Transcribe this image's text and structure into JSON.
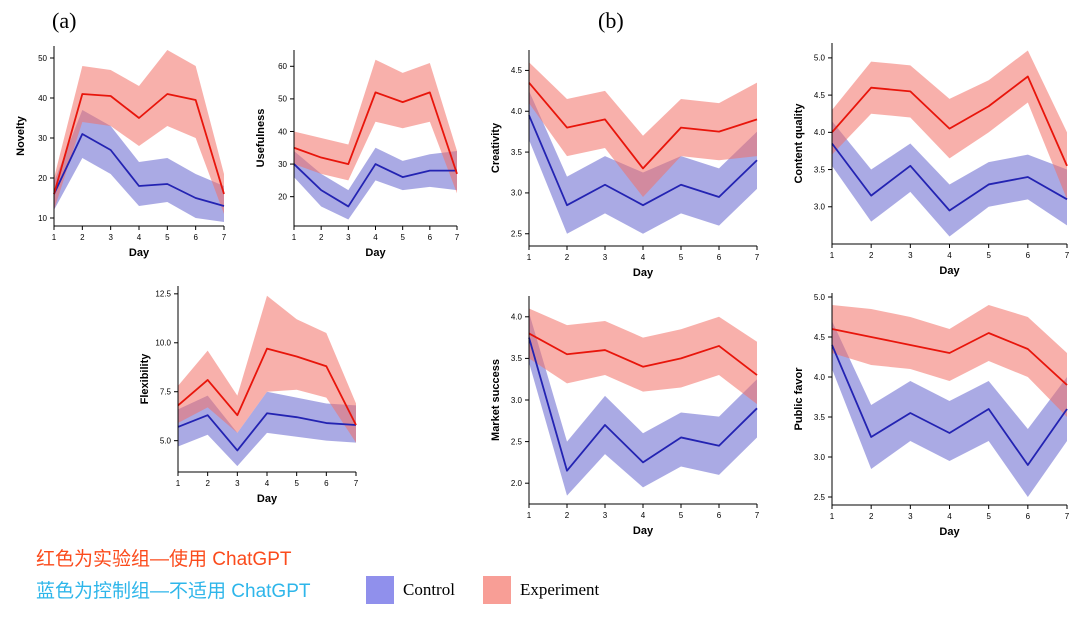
{
  "panel_a_label": "(a)",
  "panel_b_label": "(b)",
  "caption": {
    "line1": "红色为实验组—使用 ChatGPT",
    "line2": "蓝色为控制组—不适用 ChatGPT"
  },
  "legend": {
    "control_label": "Control",
    "experiment_label": "Experiment"
  },
  "colors": {
    "experiment_line": "#E8150B",
    "experiment_band": "#F26F66",
    "control_line": "#2323B2",
    "control_band": "#6464CE",
    "control_swatch": "#9090EC",
    "experiment_swatch": "#F89E96",
    "caption_red": "#FB4B1C",
    "caption_blue": "#2EB6EA"
  },
  "chart_data": [
    {
      "id": "novelty",
      "panel": "a",
      "type": "line",
      "xlabel": "Day",
      "ylabel": "Novelty",
      "x": [
        1,
        2,
        3,
        4,
        5,
        6,
        7
      ],
      "ylim": [
        8,
        53
      ],
      "yticks": [
        10,
        20,
        30,
        40,
        50
      ],
      "ytick_labels": [
        "10",
        "20",
        "30",
        "40",
        "50"
      ],
      "series": [
        {
          "key": "control",
          "name": "Control",
          "values": [
            16,
            31,
            27,
            18,
            18.5,
            15,
            13
          ],
          "lower": [
            12,
            25,
            21,
            13,
            14,
            10,
            9
          ],
          "upper": [
            19,
            37,
            33,
            24,
            25,
            21,
            18
          ]
        },
        {
          "key": "experiment",
          "name": "Experiment",
          "values": [
            16,
            41,
            40.5,
            35,
            41,
            39.5,
            16
          ],
          "lower": [
            12,
            34,
            33,
            28,
            33,
            30,
            11
          ],
          "upper": [
            20,
            48,
            47,
            43,
            52,
            48,
            21
          ]
        }
      ]
    },
    {
      "id": "usefulness",
      "panel": "a",
      "type": "line",
      "xlabel": "Day",
      "ylabel": "Usefulness",
      "x": [
        1,
        2,
        3,
        4,
        5,
        6,
        7
      ],
      "ylim": [
        11,
        65
      ],
      "yticks": [
        20,
        30,
        40,
        50,
        60
      ],
      "ytick_labels": [
        "20",
        "30",
        "40",
        "50",
        "60"
      ],
      "series": [
        {
          "key": "control",
          "name": "Control",
          "values": [
            30,
            22,
            17,
            30,
            26,
            28,
            28
          ],
          "lower": [
            26,
            17,
            13,
            25,
            22,
            23,
            22
          ],
          "upper": [
            34,
            27,
            22,
            35,
            31,
            33,
            34
          ]
        },
        {
          "key": "experiment",
          "name": "Experiment",
          "values": [
            35,
            32,
            30,
            52,
            49,
            52,
            27
          ],
          "lower": [
            30,
            27,
            25,
            43,
            41,
            43,
            21
          ],
          "upper": [
            40,
            38,
            36,
            62,
            58,
            61,
            34
          ]
        }
      ]
    },
    {
      "id": "flexibility",
      "panel": "a",
      "type": "line",
      "xlabel": "Day",
      "ylabel": "Flexibility",
      "x": [
        1,
        2,
        3,
        4,
        5,
        6,
        7
      ],
      "ylim": [
        3.4,
        12.9
      ],
      "yticks": [
        5.0,
        7.5,
        10.0,
        12.5
      ],
      "ytick_labels": [
        "5.0",
        "7.5",
        "10.0",
        "12.5"
      ],
      "series": [
        {
          "key": "control",
          "name": "Control",
          "values": [
            5.7,
            6.3,
            4.5,
            6.4,
            6.2,
            5.9,
            5.8
          ],
          "lower": [
            4.7,
            5.3,
            3.7,
            5.4,
            5.2,
            5.0,
            4.9
          ],
          "upper": [
            6.6,
            7.3,
            5.4,
            7.5,
            7.2,
            6.9,
            6.8
          ]
        },
        {
          "key": "experiment",
          "name": "Experiment",
          "values": [
            6.8,
            8.1,
            6.3,
            9.7,
            9.3,
            8.8,
            5.8
          ],
          "lower": [
            5.9,
            6.7,
            5.4,
            7.5,
            7.6,
            7.2,
            4.9
          ],
          "upper": [
            7.8,
            9.6,
            7.3,
            12.4,
            11.2,
            10.5,
            6.9
          ]
        }
      ]
    },
    {
      "id": "creativity",
      "panel": "b",
      "type": "line",
      "xlabel": "Day",
      "ylabel": "Creativity",
      "x": [
        1,
        2,
        3,
        4,
        5,
        6,
        7
      ],
      "ylim": [
        2.35,
        4.75
      ],
      "yticks": [
        2.5,
        3.0,
        3.5,
        4.0,
        4.5
      ],
      "ytick_labels": [
        "2.5",
        "3.0",
        "3.5",
        "4.0",
        "4.5"
      ],
      "series": [
        {
          "key": "control",
          "name": "Control",
          "values": [
            3.95,
            2.85,
            3.1,
            2.85,
            3.1,
            2.95,
            3.4
          ],
          "lower": [
            3.65,
            2.5,
            2.75,
            2.5,
            2.75,
            2.6,
            3.05
          ],
          "upper": [
            4.25,
            3.2,
            3.45,
            3.25,
            3.45,
            3.3,
            3.75
          ]
        },
        {
          "key": "experiment",
          "name": "Experiment",
          "values": [
            4.35,
            3.8,
            3.9,
            3.3,
            3.8,
            3.75,
            3.9
          ],
          "lower": [
            4.1,
            3.45,
            3.55,
            2.95,
            3.45,
            3.4,
            3.45
          ],
          "upper": [
            4.6,
            4.15,
            4.25,
            3.7,
            4.15,
            4.1,
            4.35
          ]
        }
      ]
    },
    {
      "id": "content_quality",
      "panel": "b",
      "type": "line",
      "xlabel": "Day",
      "ylabel": "Content quality",
      "x": [
        1,
        2,
        3,
        4,
        5,
        6,
        7
      ],
      "ylim": [
        2.5,
        5.2
      ],
      "yticks": [
        3.0,
        3.5,
        4.0,
        4.5,
        5.0
      ],
      "ytick_labels": [
        "3.0",
        "3.5",
        "4.0",
        "4.5",
        "5.0"
      ],
      "series": [
        {
          "key": "control",
          "name": "Control",
          "values": [
            3.85,
            3.15,
            3.55,
            2.95,
            3.3,
            3.4,
            3.1
          ],
          "lower": [
            3.55,
            2.8,
            3.2,
            2.6,
            3.0,
            3.1,
            2.75
          ],
          "upper": [
            4.15,
            3.5,
            3.85,
            3.3,
            3.6,
            3.7,
            3.5
          ]
        },
        {
          "key": "experiment",
          "name": "Experiment",
          "values": [
            4.0,
            4.6,
            4.55,
            4.05,
            4.35,
            4.75,
            3.55
          ],
          "lower": [
            3.7,
            4.25,
            4.2,
            3.65,
            4.0,
            4.4,
            3.1
          ],
          "upper": [
            4.3,
            4.95,
            4.9,
            4.45,
            4.7,
            5.1,
            4.0
          ]
        }
      ]
    },
    {
      "id": "market_success",
      "panel": "b",
      "type": "line",
      "xlabel": "Day",
      "ylabel": "Market success",
      "x": [
        1,
        2,
        3,
        4,
        5,
        6,
        7
      ],
      "ylim": [
        1.75,
        4.25
      ],
      "yticks": [
        2.0,
        2.5,
        3.0,
        3.5,
        4.0
      ],
      "ytick_labels": [
        "2.0",
        "2.5",
        "3.0",
        "3.5",
        "4.0"
      ],
      "series": [
        {
          "key": "control",
          "name": "Control",
          "values": [
            3.75,
            2.15,
            2.7,
            2.25,
            2.55,
            2.45,
            2.9
          ],
          "lower": [
            3.45,
            1.85,
            2.35,
            1.95,
            2.2,
            2.1,
            2.55
          ],
          "upper": [
            4.05,
            2.5,
            3.05,
            2.6,
            2.85,
            2.8,
            3.25
          ]
        },
        {
          "key": "experiment",
          "name": "Experiment",
          "values": [
            3.8,
            3.55,
            3.6,
            3.4,
            3.5,
            3.65,
            3.3
          ],
          "lower": [
            3.5,
            3.2,
            3.3,
            3.1,
            3.15,
            3.3,
            2.95
          ],
          "upper": [
            4.1,
            3.9,
            3.95,
            3.75,
            3.85,
            4.0,
            3.7
          ]
        }
      ]
    },
    {
      "id": "public_favor",
      "panel": "b",
      "type": "line",
      "xlabel": "Day",
      "ylabel": "Public favor",
      "x": [
        1,
        2,
        3,
        4,
        5,
        6,
        7
      ],
      "ylim": [
        2.4,
        5.05
      ],
      "yticks": [
        2.5,
        3.0,
        3.5,
        4.0,
        4.5,
        5.0
      ],
      "ytick_labels": [
        "2.5",
        "3.0",
        "3.5",
        "4.0",
        "4.5",
        "5.0"
      ],
      "series": [
        {
          "key": "control",
          "name": "Control",
          "values": [
            4.4,
            3.25,
            3.55,
            3.3,
            3.6,
            2.9,
            3.6
          ],
          "lower": [
            4.1,
            2.85,
            3.2,
            2.95,
            3.2,
            2.5,
            3.2
          ],
          "upper": [
            4.7,
            3.65,
            3.95,
            3.7,
            3.95,
            3.35,
            4.0
          ]
        },
        {
          "key": "experiment",
          "name": "Experiment",
          "values": [
            4.6,
            4.5,
            4.4,
            4.3,
            4.55,
            4.35,
            3.9
          ],
          "lower": [
            4.3,
            4.15,
            4.1,
            3.95,
            4.2,
            4.0,
            3.5
          ],
          "upper": [
            4.9,
            4.85,
            4.75,
            4.6,
            4.9,
            4.75,
            4.3
          ]
        }
      ]
    }
  ]
}
